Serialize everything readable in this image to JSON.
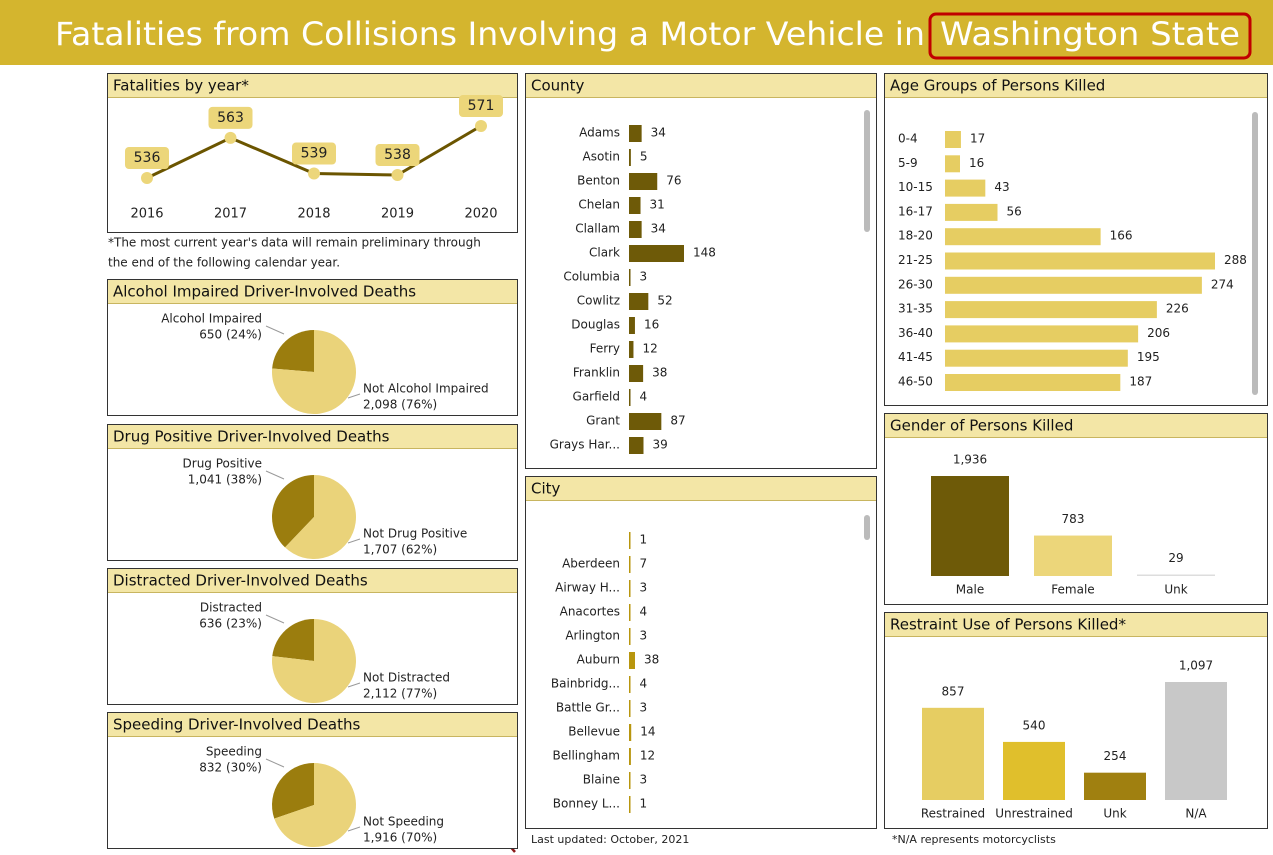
{
  "title": "Fatalities from Collisions Involving a Motor Vehicle in",
  "title_highlight": "Washington State",
  "footer_left": "Last updated: October, 2021",
  "footer_right": "*N/A represents motorcyclists",
  "chart_data": [
    {
      "type": "line",
      "title": "Fatalities by year*",
      "categories": [
        "2016",
        "2017",
        "2018",
        "2019",
        "2020"
      ],
      "values": [
        536,
        563,
        539,
        538,
        571
      ],
      "color": "#6b5500",
      "note": [
        "*The most current year's data will remain preliminary through",
        "the end of the following calendar year."
      ]
    },
    {
      "type": "pie",
      "title": "Alcohol Impaired Driver-Involved Deaths",
      "categories": [
        "Alcohol Impaired",
        "Not Alcohol Impaired"
      ],
      "values": [
        650,
        2098
      ],
      "value_labels": [
        "650 (24%)",
        "2,098 (76%)"
      ],
      "colors": [
        "#9b7d0e",
        "#ead37a"
      ]
    },
    {
      "type": "pie",
      "title": "Drug Positive Driver-Involved Deaths",
      "categories": [
        "Drug Positive",
        "Not Drug Positive"
      ],
      "values": [
        1041,
        1707
      ],
      "value_labels": [
        "1,041 (38%)",
        "1,707 (62%)"
      ],
      "colors": [
        "#9b7d0e",
        "#ead37a"
      ]
    },
    {
      "type": "pie",
      "title": "Distracted Driver-Involved Deaths",
      "categories": [
        "Distracted",
        "Not Distracted"
      ],
      "values": [
        636,
        2112
      ],
      "value_labels": [
        "636 (23%)",
        "2,112 (77%)"
      ],
      "colors": [
        "#9b7d0e",
        "#ead37a"
      ]
    },
    {
      "type": "pie",
      "title": "Speeding Driver-Involved Deaths",
      "categories": [
        "Speeding",
        "Not Speeding"
      ],
      "values": [
        832,
        1916
      ],
      "value_labels": [
        "832 (30%)",
        "1,916 (70%)"
      ],
      "colors": [
        "#9b7d0e",
        "#ead37a"
      ]
    },
    {
      "type": "hbar",
      "title": "County",
      "categories": [
        "Adams",
        "Asotin",
        "Benton",
        "Chelan",
        "Clallam",
        "Clark",
        "Columbia",
        "Cowlitz",
        "Douglas",
        "Ferry",
        "Franklin",
        "Garfield",
        "Grant",
        "Grays Har..."
      ],
      "values": [
        34,
        5,
        76,
        31,
        34,
        148,
        3,
        52,
        16,
        12,
        38,
        4,
        87,
        39
      ],
      "color": "#6e5a08"
    },
    {
      "type": "hbar",
      "title": "City",
      "categories": [
        null,
        "Aberdeen",
        "Airway H...",
        "Anacortes",
        "Arlington",
        "Auburn",
        "Bainbridg...",
        "Battle Gr...",
        "Bellevue",
        "Bellingham",
        "Blaine",
        "Bonney L..."
      ],
      "values": [
        1,
        7,
        3,
        4,
        3,
        38,
        4,
        3,
        14,
        12,
        3,
        1
      ],
      "color": "#b8960e"
    },
    {
      "type": "hbar",
      "title": "Age Groups of Persons Killed",
      "categories": [
        "0-4",
        "5-9",
        "10-15",
        "16-17",
        "18-20",
        "21-25",
        "26-30",
        "31-35",
        "36-40",
        "41-45",
        "46-50"
      ],
      "values": [
        17,
        16,
        43,
        56,
        166,
        288,
        274,
        226,
        206,
        195,
        187
      ],
      "color": "#e6cd62"
    },
    {
      "type": "vbar",
      "title": "Gender of Persons Killed",
      "categories": [
        "Male",
        "Female",
        "Unk"
      ],
      "values": [
        1936,
        783,
        29
      ],
      "value_labels": [
        "1,936",
        "783",
        "29"
      ],
      "colors": [
        "#6e5a08",
        "#ecd67a",
        "#dddddd"
      ]
    },
    {
      "type": "vbar",
      "title": "Restraint Use of Persons Killed*",
      "categories": [
        "Restrained",
        "Unrestrained",
        "Unk",
        "N/A"
      ],
      "values": [
        857,
        540,
        254,
        1097
      ],
      "value_labels": [
        "857",
        "540",
        "254",
        "1,097"
      ],
      "colors": [
        "#e6cd62",
        "#e0bf2c",
        "#a08010",
        "#c8c8c8"
      ]
    }
  ]
}
